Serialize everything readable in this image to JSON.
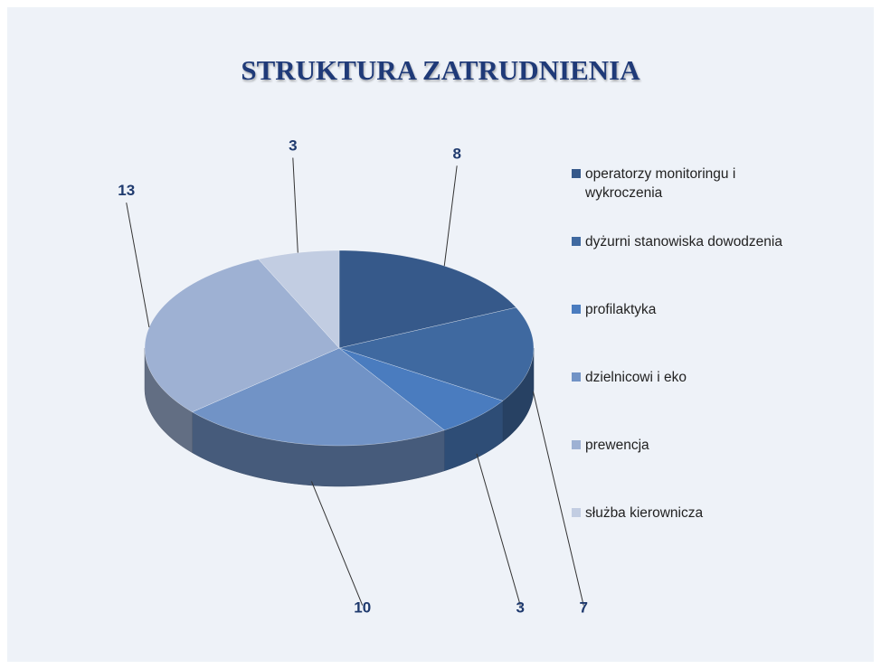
{
  "chart_data": {
    "type": "pie",
    "title": "STRUKTURA ZATRUDNIENIA",
    "categories": [
      "operatorzy monitoringu i wykroczenia",
      "dyżurni stanowiska dowodzenia",
      "profilaktyka",
      "dzielnicowi i eko",
      "prewencja",
      "służba kierownicza"
    ],
    "values": [
      8,
      7,
      3,
      10,
      13,
      3
    ],
    "colors": [
      "#36598a",
      "#3f69a0",
      "#4a7cbf",
      "#7193c6",
      "#9eb1d3",
      "#c2cde2"
    ],
    "legend": "right"
  }
}
